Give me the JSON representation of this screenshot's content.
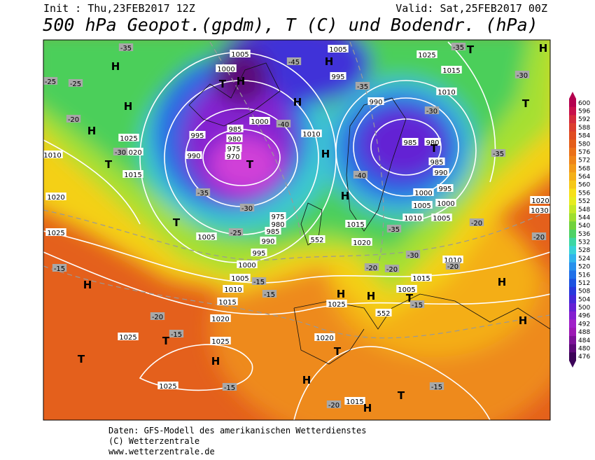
{
  "header": {
    "init": "Init : Thu,23FEB2017 12Z",
    "valid": "Valid: Sat,25FEB2017 00Z",
    "title": "500 hPa Geopot.(gpdm), T (C) und Bodendr. (hPa)"
  },
  "colorbar": {
    "labels": [
      600,
      596,
      592,
      588,
      584,
      580,
      576,
      572,
      568,
      564,
      560,
      556,
      552,
      548,
      544,
      540,
      536,
      532,
      528,
      524,
      520,
      516,
      512,
      508,
      504,
      500,
      496,
      492,
      488,
      484,
      480,
      476
    ],
    "colors": [
      "#b4004e",
      "#c8104a",
      "#d42a3a",
      "#dc3c2c",
      "#e04c20",
      "#e45e1a",
      "#ea7018",
      "#ee8418",
      "#f29a18",
      "#f4b018",
      "#f6c818",
      "#f6e018",
      "#e6ec20",
      "#c4e828",
      "#9ede30",
      "#72d23c",
      "#4ed266",
      "#3cd6a4",
      "#38d2d8",
      "#30b4ec",
      "#2890ec",
      "#2070e8",
      "#1c52e0",
      "#2838dc",
      "#4428d8",
      "#6420d4",
      "#8420d0",
      "#a020c8",
      "#9c18b4",
      "#7c1098",
      "#5c0878",
      "#3c0458"
    ]
  },
  "map": {
    "labels": [
      "-35",
      "1005",
      "1000",
      "T",
      "H",
      "-25",
      "-25",
      "H",
      "H",
      "H",
      "-20",
      "1025",
      "1020",
      "T",
      "1015",
      "1010",
      "-30",
      "990",
      "985",
      "995",
      "980",
      "975",
      "970",
      "T",
      "1000",
      "-40",
      "1010",
      "H",
      "H",
      "1005",
      "995",
      "H",
      "-45",
      "-35",
      "990",
      "985",
      "980",
      "T",
      "985",
      "990",
      "995",
      "1000",
      "1005",
      "1000",
      "1005",
      "1010",
      "1015",
      "1020",
      "H",
      "-40",
      "-35",
      "1025",
      "1015",
      "1010",
      "-30",
      "T",
      "T",
      "H",
      "-30",
      "-35",
      "-35",
      "1020",
      "1030",
      "-20",
      "-20",
      "1020",
      "1025",
      "-15",
      "H",
      "T",
      "1005",
      "-35",
      "-30",
      "-25",
      "975",
      "980",
      "985",
      "990",
      "995",
      "1000",
      "1005",
      "1010",
      "1015",
      "-15",
      "-15",
      "1020",
      "-20",
      "-15",
      "T",
      "1025",
      "1025",
      "T",
      "H",
      "1025",
      "-15",
      "H",
      "1025",
      "H",
      "1020",
      "T",
      "H",
      "-20",
      "1015",
      "H",
      "T",
      "-15",
      "-20",
      "-20",
      "1005",
      "1015",
      "T",
      "-15",
      "1010",
      "-20",
      "H",
      "H",
      "-30",
      "552",
      "552"
    ]
  },
  "footer": {
    "line1": "Daten: GFS-Modell des amerikanischen Wetterdienstes",
    "line2": "(C) Wetterzentrale",
    "line3": "www.wetterzentrale.de"
  }
}
